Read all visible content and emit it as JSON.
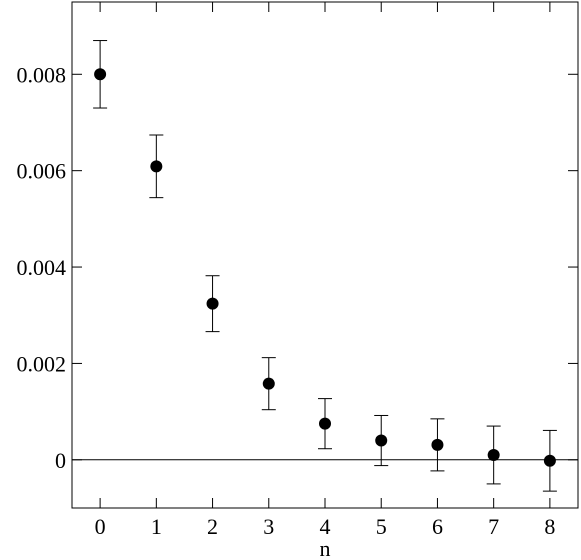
{
  "chart_data": {
    "type": "scatter",
    "xlabel": "n",
    "x": [
      0,
      1,
      2,
      3,
      4,
      5,
      6,
      7,
      8
    ],
    "values": [
      0.008,
      0.00609,
      0.00324,
      0.00158,
      0.00075,
      0.0004,
      0.00031,
      0.0001,
      -2e-05
    ],
    "errors": [
      0.0007,
      0.00065,
      0.00058,
      0.00054,
      0.00052,
      0.00052,
      0.00054,
      0.0006,
      0.00063
    ],
    "color": "#000000",
    "xlim": [
      -0.5,
      8.5
    ],
    "xticks": [
      0,
      1,
      2,
      3,
      4,
      5,
      6,
      7,
      8
    ],
    "ylim": [
      -0.001,
      0.0095
    ],
    "yticks": [
      0,
      0.002,
      0.004,
      0.006,
      0.008
    ],
    "hline": 0
  }
}
